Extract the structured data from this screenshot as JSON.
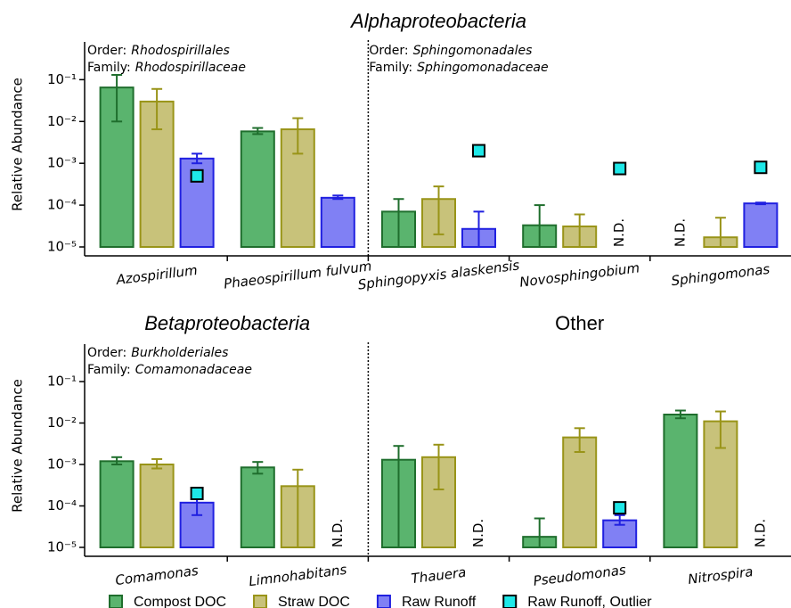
{
  "chart_data": [
    {
      "type": "bar",
      "titles": [
        "Alphaproteobacteria"
      ],
      "title_italic": [
        true
      ],
      "ylabel": "Relative Abundance",
      "log_y": true,
      "ylim": [
        1e-05,
        0.8
      ],
      "yticks": [
        {
          "value": 1e-05,
          "label": "10⁻⁵"
        },
        {
          "value": 0.0001,
          "label": "10⁻⁴"
        },
        {
          "value": 0.001,
          "label": "10⁻³"
        },
        {
          "value": 0.01,
          "label": "10⁻²"
        },
        {
          "value": 0.1,
          "label": "10⁻¹"
        }
      ],
      "categories": [
        "Azospirillum",
        "Phaeospirillum fulvum",
        "Sphingopyxis alaskensis",
        "Novosphingobium",
        "Sphingomonas"
      ],
      "divider_before": 2,
      "annotations": [
        {
          "category": 0,
          "lines": [
            [
              "Order:",
              "Rhodospirillales"
            ],
            [
              "Family:",
              "Rhodospirillaceae"
            ]
          ]
        },
        {
          "category": 2,
          "lines": [
            [
              "Order:",
              "Sphingomonadales"
            ],
            [
              "Family:",
              "Sphingomonadaceae"
            ]
          ]
        }
      ],
      "series": [
        {
          "color": "#5ab46e",
          "edge": "#1f6e2d",
          "values": [
            0.065,
            0.0058,
            7e-05,
            3.3e-05,
            null
          ],
          "error_low": [
            0.01,
            0.005,
            1e-05,
            1e-05,
            null
          ],
          "error_high": [
            0.13,
            0.007,
            0.00014,
            0.0001,
            null
          ],
          "value_labels": [
            null,
            null,
            null,
            null,
            "N.D."
          ]
        },
        {
          "color": "#c8c27a",
          "edge": "#999418",
          "values": [
            0.03,
            0.0065,
            0.00014,
            3.1e-05,
            1.7e-05
          ],
          "error_low": [
            0.0065,
            0.0017,
            2e-05,
            1e-05,
            1e-05
          ],
          "error_high": [
            0.06,
            0.012,
            0.00028,
            6e-05,
            5e-05
          ]
        },
        {
          "color": "#8080f4",
          "edge": "#2020e0",
          "values": [
            0.0013,
            0.00015,
            2.7e-05,
            null,
            0.00011
          ],
          "error_low": [
            0.001,
            0.00014,
            1e-05,
            null,
            0.000105
          ],
          "error_high": [
            0.0017,
            0.00017,
            7e-05,
            null,
            0.000115
          ],
          "value_labels": [
            null,
            null,
            null,
            "N.D.",
            null
          ]
        },
        {
          "marker": "square",
          "color": "#1ee8e8",
          "edge": "#000000",
          "values": [
            0.0005,
            null,
            0.002,
            0.00075,
            0.0008
          ]
        }
      ]
    },
    {
      "type": "bar",
      "titles": [
        "Betaproteobacteria",
        "Other"
      ],
      "title_italic": [
        true,
        false
      ],
      "ylabel": "Relative Abundance",
      "log_y": true,
      "ylim": [
        1e-05,
        0.8
      ],
      "yticks": [
        {
          "value": 1e-05,
          "label": "10⁻⁵"
        },
        {
          "value": 0.0001,
          "label": "10⁻⁴"
        },
        {
          "value": 0.001,
          "label": "10⁻³"
        },
        {
          "value": 0.01,
          "label": "10⁻²"
        },
        {
          "value": 0.1,
          "label": "10⁻¹"
        }
      ],
      "categories": [
        "Comamonas",
        "Limnohabitans",
        "Thauera",
        "Pseudomonas",
        "Nitrospira"
      ],
      "divider_before": 2,
      "annotations": [
        {
          "category": 0,
          "lines": [
            [
              "Order:",
              "Burkholderiales"
            ],
            [
              "Family:",
              "Comamonadaceae"
            ]
          ]
        }
      ],
      "series": [
        {
          "name": "Compost DOC",
          "color": "#5ab46e",
          "edge": "#1f6e2d",
          "values": [
            0.0012,
            0.00085,
            0.0013,
            1.8e-05,
            0.016
          ],
          "error_low": [
            0.001,
            0.0006,
            1e-05,
            1e-05,
            0.013
          ],
          "error_high": [
            0.0015,
            0.00115,
            0.0028,
            5e-05,
            0.02
          ]
        },
        {
          "name": "Straw DOC",
          "color": "#c8c27a",
          "edge": "#999418",
          "values": [
            0.001,
            0.0003,
            0.0015,
            0.0045,
            0.011
          ],
          "error_low": [
            0.0008,
            1e-05,
            0.00025,
            0.002,
            0.0025
          ],
          "error_high": [
            0.00135,
            0.00075,
            0.003,
            0.0075,
            0.019
          ]
        },
        {
          "name": "Raw Runoff",
          "color": "#8080f4",
          "edge": "#2020e0",
          "values": [
            0.00012,
            null,
            null,
            4.5e-05,
            null
          ],
          "error_low": [
            6e-05,
            null,
            null,
            3.5e-05,
            null
          ],
          "error_high": [
            0.00018,
            null,
            null,
            6e-05,
            null
          ],
          "value_labels": [
            null,
            "N.D.",
            "N.D.",
            null,
            "N.D."
          ]
        },
        {
          "name": "Raw Runoff, Outlier",
          "marker": "square",
          "color": "#1ee8e8",
          "edge": "#000000",
          "values": [
            0.0002,
            null,
            null,
            9e-05,
            null
          ]
        }
      ]
    }
  ]
}
